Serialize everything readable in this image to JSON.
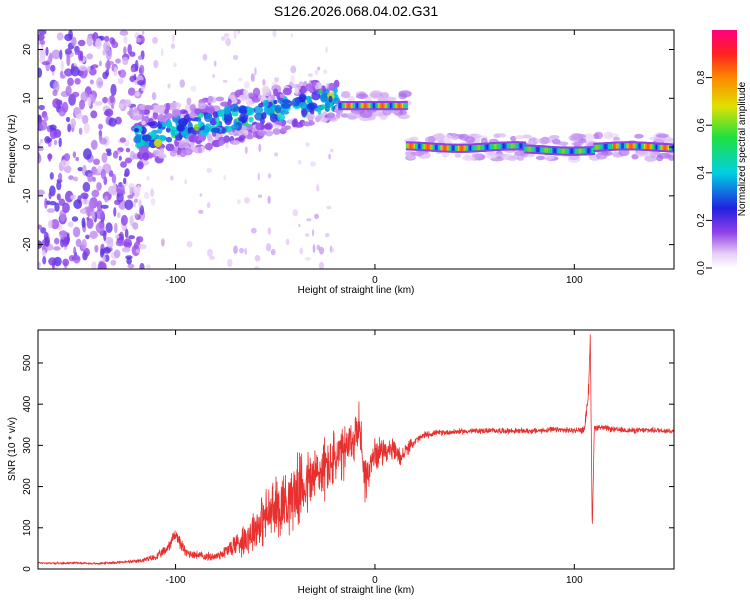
{
  "title": "S126.2026.068.04.02.G31",
  "colors": {
    "snr_line": "#e8302e",
    "frame": "#000000",
    "background": "#ffffff"
  },
  "chart_data": [
    {
      "type": "heatmap",
      "id": "spectrogram",
      "xlabel": "Height of straight line (km)",
      "ylabel": "Frequency (Hz)",
      "xlim": [
        -169,
        150
      ],
      "ylim": [
        -25,
        24
      ],
      "xticks": [
        -100,
        0,
        100
      ],
      "xtick_labels": [
        "-100",
        "0",
        "100"
      ],
      "yticks": [
        -20,
        -10,
        0,
        10,
        20
      ],
      "ytick_labels": [
        "-20",
        "-10",
        "0",
        "10",
        "20"
      ],
      "colorbar": {
        "label": "Normalized spectral amplitude",
        "range": [
          0,
          1
        ],
        "ticks": [
          0.0,
          0.2,
          0.4,
          0.6,
          0.8
        ],
        "tick_labels": [
          "0.0",
          "0.2",
          "0.4",
          "0.6",
          "0.8"
        ]
      },
      "bands": [
        {
          "x_start": -120,
          "x_end": -18,
          "freq_start": 2,
          "freq_end": 10,
          "amplitude": 0.35
        },
        {
          "x_start": -18,
          "x_end": 16,
          "freq": 8.5,
          "amplitude": 0.9
        },
        {
          "x_start": 16,
          "x_end": 150,
          "freq": 0,
          "amplitude": 0.85
        }
      ],
      "noise_region": {
        "x_start": -169,
        "x_end": -120,
        "amplitude": 0.15
      }
    },
    {
      "type": "line",
      "id": "snr",
      "xlabel": "Height of straight line (km)",
      "ylabel": "SNR (10 * v/v)",
      "xlim": [
        -169,
        150
      ],
      "ylim": [
        0,
        580
      ],
      "xticks": [
        -100,
        0,
        100
      ],
      "xtick_labels": [
        "-100",
        "0",
        "100"
      ],
      "yticks": [
        0,
        100,
        200,
        300,
        400,
        500
      ],
      "ytick_labels": [
        "0",
        "100",
        "200",
        "300",
        "400",
        "500"
      ],
      "series": [
        {
          "name": "SNR",
          "x": [
            -169,
            -160,
            -150,
            -140,
            -130,
            -120,
            -110,
            -105,
            -100,
            -95,
            -90,
            -85,
            -80,
            -75,
            -70,
            -65,
            -60,
            -55,
            -50,
            -45,
            -40,
            -35,
            -30,
            -25,
            -20,
            -15,
            -10,
            -8,
            -5,
            -2,
            0,
            5,
            10,
            13,
            16,
            20,
            25,
            30,
            40,
            50,
            60,
            70,
            80,
            90,
            100,
            105,
            107,
            108,
            109,
            110,
            112,
            120,
            130,
            140,
            150
          ],
          "values": [
            15,
            14,
            15,
            13,
            16,
            18,
            28,
            45,
            85,
            40,
            35,
            30,
            30,
            42,
            60,
            75,
            100,
            125,
            145,
            165,
            185,
            205,
            225,
            245,
            265,
            280,
            320,
            360,
            220,
            250,
            280,
            290,
            285,
            270,
            290,
            310,
            325,
            330,
            333,
            335,
            336,
            335,
            335,
            338,
            336,
            338,
            420,
            560,
            95,
            340,
            345,
            338,
            336,
            337,
            335
          ],
          "noise_amplitude": [
            3,
            3,
            3,
            3,
            4,
            5,
            10,
            15,
            20,
            15,
            12,
            12,
            12,
            20,
            35,
            50,
            65,
            80,
            90,
            95,
            100,
            100,
            95,
            90,
            85,
            80,
            75,
            60,
            70,
            60,
            45,
            35,
            30,
            25,
            20,
            12,
            10,
            8,
            8,
            8,
            8,
            8,
            8,
            8,
            8,
            10,
            30,
            20,
            10,
            10,
            8,
            8,
            8,
            8,
            8
          ]
        }
      ]
    }
  ]
}
